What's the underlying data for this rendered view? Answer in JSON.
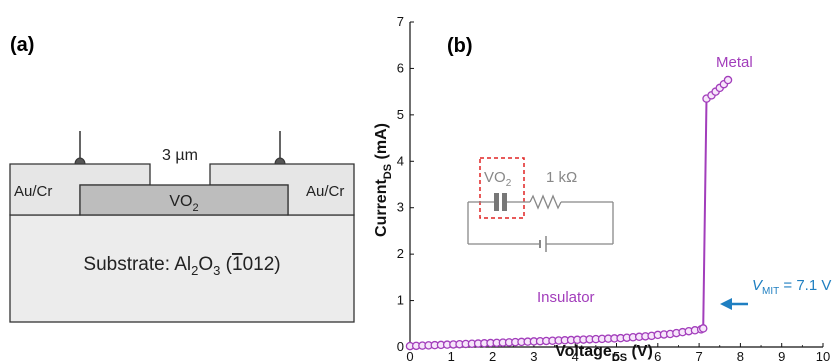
{
  "panel_a": {
    "label": "(a)",
    "gap_label": "3 µm",
    "electrode_left": "Au/Cr",
    "electrode_right": "Au/Cr",
    "film": {
      "main": "VO",
      "sub": "2"
    },
    "substrate": {
      "prefix": "Substrate: Al",
      "sub1": "2",
      "mid": "O",
      "sub2": "3",
      "open": " (",
      "overbar_digit": "1",
      "rest": "012)"
    },
    "colors": {
      "film": "#bdbdbd",
      "electrode": "#e6e6e6",
      "substrate": "#ececec",
      "outline": "#333333"
    }
  },
  "panel_b": {
    "label": "(b)",
    "phase_metal": "Metal",
    "phase_insulator": "Insulator",
    "vmit": {
      "symbol": "V",
      "sub": "MIT",
      "value": " = 7.1 V"
    },
    "inset": {
      "film_main": "VO",
      "film_sub": "2",
      "resistor": "1 kΩ"
    },
    "colors": {
      "data": "#a23dbb",
      "arrow": "#1f7fc1",
      "inset": "#888888",
      "inset_box": "#e02424"
    }
  },
  "chart_data": {
    "type": "scatter",
    "xlabel": {
      "main": "Voltage",
      "sub": "DS",
      "unit": " (V)"
    },
    "ylabel": {
      "main": "Current",
      "sub": "DS",
      "unit": " (mA)"
    },
    "xlim": [
      0,
      10
    ],
    "ylim": [
      0,
      7
    ],
    "xticks": [
      "0",
      "1",
      "2",
      "3",
      "4",
      "5",
      "6",
      "7",
      "8",
      "9",
      "10"
    ],
    "yticks": [
      "0",
      "1",
      "2",
      "3",
      "4",
      "5",
      "6",
      "7"
    ],
    "grid": false,
    "series": [
      {
        "name": "",
        "color": "#a23dbb",
        "x": [
          0.0,
          0.15,
          0.3,
          0.45,
          0.6,
          0.75,
          0.9,
          1.05,
          1.2,
          1.35,
          1.5,
          1.65,
          1.8,
          1.95,
          2.1,
          2.25,
          2.4,
          2.55,
          2.7,
          2.85,
          3.0,
          3.15,
          3.3,
          3.45,
          3.6,
          3.75,
          3.9,
          4.05,
          4.2,
          4.35,
          4.5,
          4.65,
          4.8,
          4.95,
          5.1,
          5.25,
          5.4,
          5.55,
          5.7,
          5.85,
          6.0,
          6.15,
          6.3,
          6.45,
          6.6,
          6.75,
          6.9,
          7.05,
          7.1,
          7.18,
          7.3,
          7.4,
          7.5,
          7.6,
          7.7
        ],
        "y": [
          0.02,
          0.025,
          0.03,
          0.035,
          0.04,
          0.045,
          0.05,
          0.055,
          0.06,
          0.065,
          0.07,
          0.075,
          0.08,
          0.085,
          0.09,
          0.095,
          0.1,
          0.105,
          0.11,
          0.115,
          0.12,
          0.125,
          0.13,
          0.135,
          0.14,
          0.145,
          0.15,
          0.155,
          0.16,
          0.165,
          0.17,
          0.175,
          0.18,
          0.185,
          0.19,
          0.2,
          0.21,
          0.22,
          0.23,
          0.24,
          0.26,
          0.27,
          0.28,
          0.3,
          0.32,
          0.34,
          0.36,
          0.38,
          0.4,
          5.35,
          5.42,
          5.5,
          5.58,
          5.66,
          5.75
        ]
      }
    ]
  }
}
